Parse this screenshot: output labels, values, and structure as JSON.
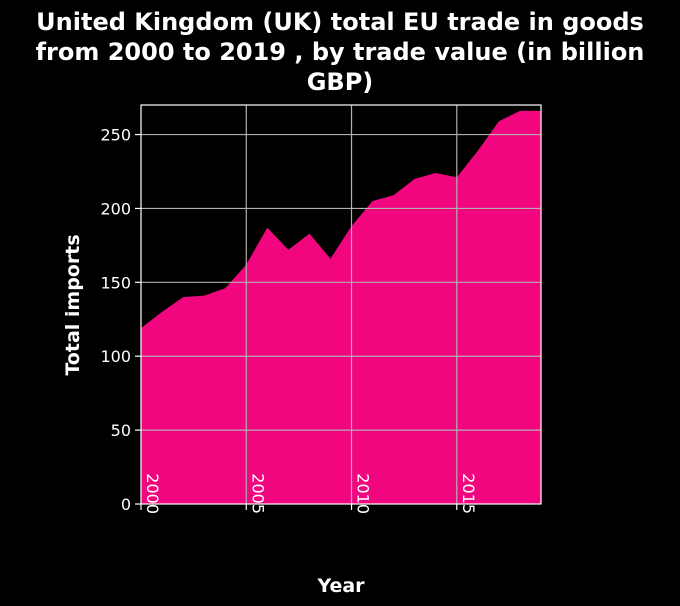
{
  "chart_data": {
    "type": "area",
    "title_lines": [
      "United Kingdom (UK) total EU trade in goods",
      "from 2000 to 2019 , by trade value (in billion",
      "GBP)"
    ],
    "xlabel": "Year",
    "ylabel": "Total imports",
    "xlim": [
      2000,
      2019
    ],
    "ylim": [
      0,
      270
    ],
    "x_ticks": [
      2000,
      2005,
      2010,
      2015
    ],
    "y_ticks": [
      0,
      50,
      100,
      150,
      200,
      250
    ],
    "grid": true,
    "x": [
      2000,
      2001,
      2002,
      2003,
      2004,
      2005,
      2006,
      2007,
      2008,
      2009,
      2010,
      2011,
      2012,
      2013,
      2014,
      2015,
      2016,
      2017,
      2018,
      2019
    ],
    "series": [
      {
        "values": [
          119,
          130,
          140,
          141,
          146,
          162,
          187,
          172,
          183,
          166,
          188,
          205,
          209,
          220,
          224,
          221,
          239,
          259,
          266,
          266
        ],
        "color": "#f2067f"
      }
    ]
  }
}
